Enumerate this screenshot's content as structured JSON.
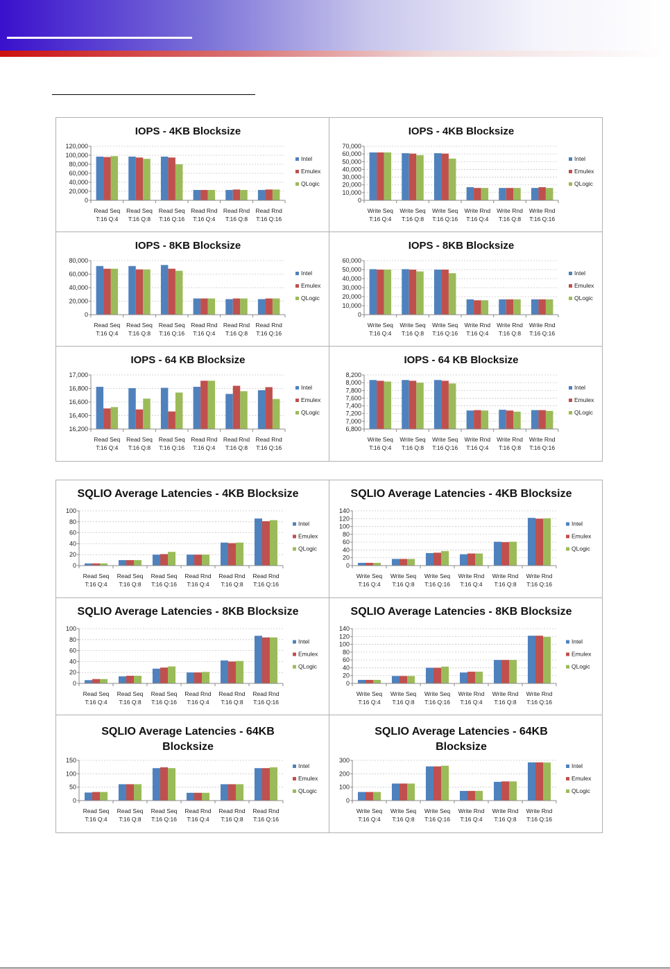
{
  "colors": {
    "Intel": "#4f81bd",
    "Emulex": "#c0504d",
    "QLogic": "#9bbb59"
  },
  "legend": [
    "Intel",
    "Emulex",
    "QLogic"
  ],
  "chart_data": [
    {
      "type": "bar",
      "title": [
        "IOPS - 4KB Blocksize"
      ],
      "categories": [
        [
          "Read Seq",
          "T:16 Q:4"
        ],
        [
          "Read Seq",
          "T:16 Q:8"
        ],
        [
          "Read Seq",
          "T:16 Q:16"
        ],
        [
          "Read Rnd",
          "T:16 Q:4"
        ],
        [
          "Read Rnd",
          "T:16 Q:8"
        ],
        [
          "Read Rnd",
          "T:16 Q:16"
        ]
      ],
      "ylim": [
        0,
        120000
      ],
      "yticks": [
        "0",
        "20,000",
        "40,000",
        "60,000",
        "80,000",
        "100,000",
        "120,000"
      ],
      "grid": true,
      "legend": "right",
      "series": [
        {
          "name": "Intel",
          "values": [
            97000,
            97000,
            97000,
            23000,
            23000,
            23000
          ]
        },
        {
          "name": "Emulex",
          "values": [
            96000,
            95000,
            95000,
            23000,
            24000,
            24000
          ]
        },
        {
          "name": "QLogic",
          "values": [
            98000,
            92000,
            80000,
            23000,
            23000,
            24000
          ]
        }
      ]
    },
    {
      "type": "bar",
      "title": [
        "IOPS - 4KB Blocksize"
      ],
      "categories": [
        [
          "Write Seq",
          "T:16 Q:4"
        ],
        [
          "Write Seq",
          "T:16 Q:8"
        ],
        [
          "Write Seq",
          "T:16 Q:16"
        ],
        [
          "Write Rnd",
          "T:16 Q:4"
        ],
        [
          "Write Rnd",
          "T:16 Q:8"
        ],
        [
          "Write Rnd",
          "T:16 Q:16"
        ]
      ],
      "ylim": [
        0,
        70000
      ],
      "yticks": [
        "0",
        "10,000",
        "20,000",
        "30,000",
        "40,000",
        "50,000",
        "60,000",
        "70,000"
      ],
      "grid": true,
      "legend": "right",
      "series": [
        {
          "name": "Intel",
          "values": [
            62000,
            61000,
            61000,
            17000,
            16000,
            16000
          ]
        },
        {
          "name": "Emulex",
          "values": [
            62000,
            60500,
            60500,
            16000,
            16000,
            17000
          ]
        },
        {
          "name": "QLogic",
          "values": [
            62000,
            58500,
            54000,
            16000,
            16000,
            16000
          ]
        }
      ]
    },
    {
      "type": "bar",
      "title": [
        "IOPS - 8KB Blocksize"
      ],
      "categories": [
        [
          "Read Seq",
          "T:16 Q:4"
        ],
        [
          "Read Seq",
          "T:16 Q:8"
        ],
        [
          "Read Seq",
          "T:16 Q:16"
        ],
        [
          "Read Rnd",
          "T:16 Q:4"
        ],
        [
          "Read Rnd",
          "T:16 Q:8"
        ],
        [
          "Read Rnd",
          "T:16 Q:16"
        ]
      ],
      "ylim": [
        0,
        80000
      ],
      "yticks": [
        "0",
        "20,000",
        "40,000",
        "60,000",
        "80,000"
      ],
      "grid": true,
      "legend": "right",
      "series": [
        {
          "name": "Intel",
          "values": [
            72000,
            72000,
            73500,
            24000,
            23000,
            23000
          ]
        },
        {
          "name": "Emulex",
          "values": [
            68000,
            67000,
            68000,
            24000,
            24000,
            24000
          ]
        },
        {
          "name": "QLogic",
          "values": [
            68000,
            67000,
            65000,
            24000,
            24000,
            24000
          ]
        }
      ]
    },
    {
      "type": "bar",
      "title": [
        "IOPS - 8KB Blocksize"
      ],
      "categories": [
        [
          "Write Seq",
          "T:16 Q:4"
        ],
        [
          "Write Seq",
          "T:16 Q:8"
        ],
        [
          "Write Seq",
          "T:16 Q:16"
        ],
        [
          "Write Rnd",
          "T:16 Q:4"
        ],
        [
          "Write Rnd",
          "T:16 Q:8"
        ],
        [
          "Write Rnd",
          "T:16 Q:16"
        ]
      ],
      "ylim": [
        0,
        60000
      ],
      "yticks": [
        "0",
        "10,000",
        "20,000",
        "30,000",
        "40,000",
        "50,000",
        "60,000"
      ],
      "grid": true,
      "legend": "right",
      "series": [
        {
          "name": "Intel",
          "values": [
            50500,
            50500,
            50000,
            17000,
            17000,
            17000
          ]
        },
        {
          "name": "Emulex",
          "values": [
            50000,
            50000,
            50000,
            16000,
            17000,
            17000
          ]
        },
        {
          "name": "QLogic",
          "values": [
            50000,
            48000,
            46000,
            16000,
            17000,
            17000
          ]
        }
      ]
    },
    {
      "type": "bar",
      "title": [
        "IOPS - 64 KB Blocksize"
      ],
      "categories": [
        [
          "Read Seq",
          "T:16 Q:4"
        ],
        [
          "Read Seq",
          "T:16 Q:8"
        ],
        [
          "Read Seq",
          "T:16 Q:16"
        ],
        [
          "Read Rnd",
          "T:16 Q:4"
        ],
        [
          "Read Rnd",
          "T:16 Q:8"
        ],
        [
          "Read Rnd",
          "T:16 Q:16"
        ]
      ],
      "ylim": [
        16200,
        17000
      ],
      "yticks": [
        "16,200",
        "16,400",
        "16,600",
        "16,800",
        "17,000"
      ],
      "grid": true,
      "legend": "right",
      "series": [
        {
          "name": "Intel",
          "values": [
            16825,
            16805,
            16810,
            16825,
            16720,
            16775
          ]
        },
        {
          "name": "Emulex",
          "values": [
            16505,
            16490,
            16460,
            16915,
            16840,
            16820
          ]
        },
        {
          "name": "QLogic",
          "values": [
            16525,
            16650,
            16740,
            16915,
            16760,
            16645
          ]
        }
      ]
    },
    {
      "type": "bar",
      "title": [
        "IOPS - 64 KB Blocksize"
      ],
      "categories": [
        [
          "Write Seq",
          "T:16 Q:4"
        ],
        [
          "Write Seq",
          "T:16 Q:8"
        ],
        [
          "Write Seq",
          "T:16 Q:16"
        ],
        [
          "Write Rnd",
          "T:16 Q:4"
        ],
        [
          "Write Rnd",
          "T:16 Q:8"
        ],
        [
          "Write Rnd",
          "T:16 Q:16"
        ]
      ],
      "ylim": [
        6800,
        8200
      ],
      "yticks": [
        "6,800",
        "7,000",
        "7,200",
        "7,400",
        "7,600",
        "7,800",
        "8,000",
        "8,200"
      ],
      "grid": true,
      "legend": "right",
      "series": [
        {
          "name": "Intel",
          "values": [
            8070,
            8070,
            8070,
            7280,
            7300,
            7290
          ]
        },
        {
          "name": "Emulex",
          "values": [
            8050,
            8050,
            8050,
            7290,
            7280,
            7290
          ]
        },
        {
          "name": "QLogic",
          "values": [
            8030,
            8000,
            7980,
            7280,
            7250,
            7270
          ]
        }
      ]
    },
    {
      "type": "bar",
      "title": [
        "SQLIO Average Latencies - 4KB Blocksize"
      ],
      "categories": [
        [
          "Read Seq",
          "T:16 Q:4"
        ],
        [
          "Read Seq",
          "T:16 Q:8"
        ],
        [
          "Read Seq",
          "T:16 Q:16"
        ],
        [
          "Read Rnd",
          "T:16 Q:4"
        ],
        [
          "Read Rnd",
          "T:16 Q:8"
        ],
        [
          "Read Rnd",
          "T:16 Q:16"
        ]
      ],
      "ylim": [
        0,
        100
      ],
      "yticks": [
        "0",
        "20",
        "40",
        "60",
        "80",
        "100"
      ],
      "grid": true,
      "legend": "right",
      "series": [
        {
          "name": "Intel",
          "values": [
            4,
            10,
            20,
            20,
            42,
            86
          ]
        },
        {
          "name": "Emulex",
          "values": [
            4,
            10,
            21,
            20,
            41,
            81
          ]
        },
        {
          "name": "QLogic",
          "values": [
            4,
            10,
            25,
            20,
            42,
            83
          ]
        }
      ]
    },
    {
      "type": "bar",
      "title": [
        "SQLIO Average Latencies - 4KB Blocksize"
      ],
      "categories": [
        [
          "Write Seq",
          "T:16 Q:4"
        ],
        [
          "Write Seq",
          "T:16 Q:8"
        ],
        [
          "Write Seq",
          "T:16 Q:16"
        ],
        [
          "Write Rnd",
          "T:16 Q:4"
        ],
        [
          "Write Rnd",
          "T:16 Q:8"
        ],
        [
          "Write Rnd",
          "T:16 Q:16"
        ]
      ],
      "ylim": [
        0,
        140
      ],
      "yticks": [
        "0",
        "20",
        "40",
        "60",
        "80",
        "100",
        "120",
        "140"
      ],
      "grid": true,
      "legend": "right",
      "series": [
        {
          "name": "Intel",
          "values": [
            7,
            17,
            32,
            29,
            61,
            122
          ]
        },
        {
          "name": "Emulex",
          "values": [
            7,
            17,
            33,
            31,
            60,
            120
          ]
        },
        {
          "name": "QLogic",
          "values": [
            7,
            17,
            37,
            31,
            61,
            121
          ]
        }
      ]
    },
    {
      "type": "bar",
      "title": [
        "SQLIO Average Latencies - 8KB Blocksize"
      ],
      "categories": [
        [
          "Read Seq",
          "T:16 Q:4"
        ],
        [
          "Read Seq",
          "T:16 Q:8"
        ],
        [
          "Read Seq",
          "T:16 Q:16"
        ],
        [
          "Read Rnd",
          "T:16 Q:4"
        ],
        [
          "Read Rnd",
          "T:16 Q:8"
        ],
        [
          "Read Rnd",
          "T:16 Q:16"
        ]
      ],
      "ylim": [
        0,
        100
      ],
      "yticks": [
        "0",
        "20",
        "40",
        "60",
        "80",
        "100"
      ],
      "grid": true,
      "legend": "right",
      "series": [
        {
          "name": "Intel",
          "values": [
            6,
            13,
            27,
            20,
            42,
            87
          ]
        },
        {
          "name": "Emulex",
          "values": [
            8,
            14,
            29,
            20,
            40,
            84
          ]
        },
        {
          "name": "QLogic",
          "values": [
            8,
            14,
            31,
            21,
            41,
            84
          ]
        }
      ]
    },
    {
      "type": "bar",
      "title": [
        "SQLIO Average Latencies - 8KB Blocksize"
      ],
      "categories": [
        [
          "Write Seq",
          "T:16 Q:4"
        ],
        [
          "Write Seq",
          "T:16 Q:8"
        ],
        [
          "Write Seq",
          "T:16 Q:16"
        ],
        [
          "Write Rnd",
          "T:16 Q:4"
        ],
        [
          "Write Rnd",
          "T:16 Q:8"
        ],
        [
          "Write Rnd",
          "T:16 Q:16"
        ]
      ],
      "ylim": [
        0,
        140
      ],
      "yticks": [
        "0",
        "20",
        "40",
        "60",
        "80",
        "100",
        "120",
        "140"
      ],
      "grid": true,
      "legend": "right",
      "series": [
        {
          "name": "Intel",
          "values": [
            9,
            19,
            40,
            28,
            60,
            122
          ]
        },
        {
          "name": "Emulex",
          "values": [
            9,
            19,
            40,
            30,
            60,
            122
          ]
        },
        {
          "name": "QLogic",
          "values": [
            9,
            19,
            43,
            30,
            60,
            119
          ]
        }
      ]
    },
    {
      "type": "bar",
      "title": [
        "SQLIO Average Latencies - 64KB",
        "Blocksize"
      ],
      "categories": [
        [
          "Read Seq",
          "T:16 Q:4"
        ],
        [
          "Read Seq",
          "T:16 Q:8"
        ],
        [
          "Read Seq",
          "T:16 Q:16"
        ],
        [
          "Read Rnd",
          "T:16 Q:4"
        ],
        [
          "Read Rnd",
          "T:16 Q:8"
        ],
        [
          "Read Rnd",
          "T:16 Q:16"
        ]
      ],
      "ylim": [
        0,
        150
      ],
      "yticks": [
        "0",
        "50",
        "100",
        "150"
      ],
      "grid": true,
      "legend": "right",
      "series": [
        {
          "name": "Intel",
          "values": [
            30,
            61,
            121,
            29,
            61,
            121
          ]
        },
        {
          "name": "Emulex",
          "values": [
            32,
            61,
            124,
            29,
            61,
            121
          ]
        },
        {
          "name": "QLogic",
          "values": [
            32,
            61,
            121,
            29,
            61,
            124
          ]
        }
      ]
    },
    {
      "type": "bar",
      "title": [
        "SQLIO Average Latencies - 64KB",
        "Blocksize"
      ],
      "categories": [
        [
          "Write Seq",
          "T:16 Q:4"
        ],
        [
          "Write Seq",
          "T:16 Q:8"
        ],
        [
          "Write Seq",
          "T:16 Q:16"
        ],
        [
          "Write Rnd",
          "T:16 Q:4"
        ],
        [
          "Write Rnd",
          "T:16 Q:8"
        ],
        [
          "Write Rnd",
          "T:16 Q:16"
        ]
      ],
      "ylim": [
        0,
        300
      ],
      "yticks": [
        "0",
        "100",
        "200",
        "300"
      ],
      "grid": true,
      "legend": "right",
      "series": [
        {
          "name": "Intel",
          "values": [
            64,
            127,
            255,
            72,
            140,
            285
          ]
        },
        {
          "name": "Emulex",
          "values": [
            64,
            127,
            255,
            72,
            143,
            285
          ]
        },
        {
          "name": "QLogic",
          "values": [
            64,
            127,
            260,
            72,
            143,
            284
          ]
        }
      ]
    }
  ]
}
